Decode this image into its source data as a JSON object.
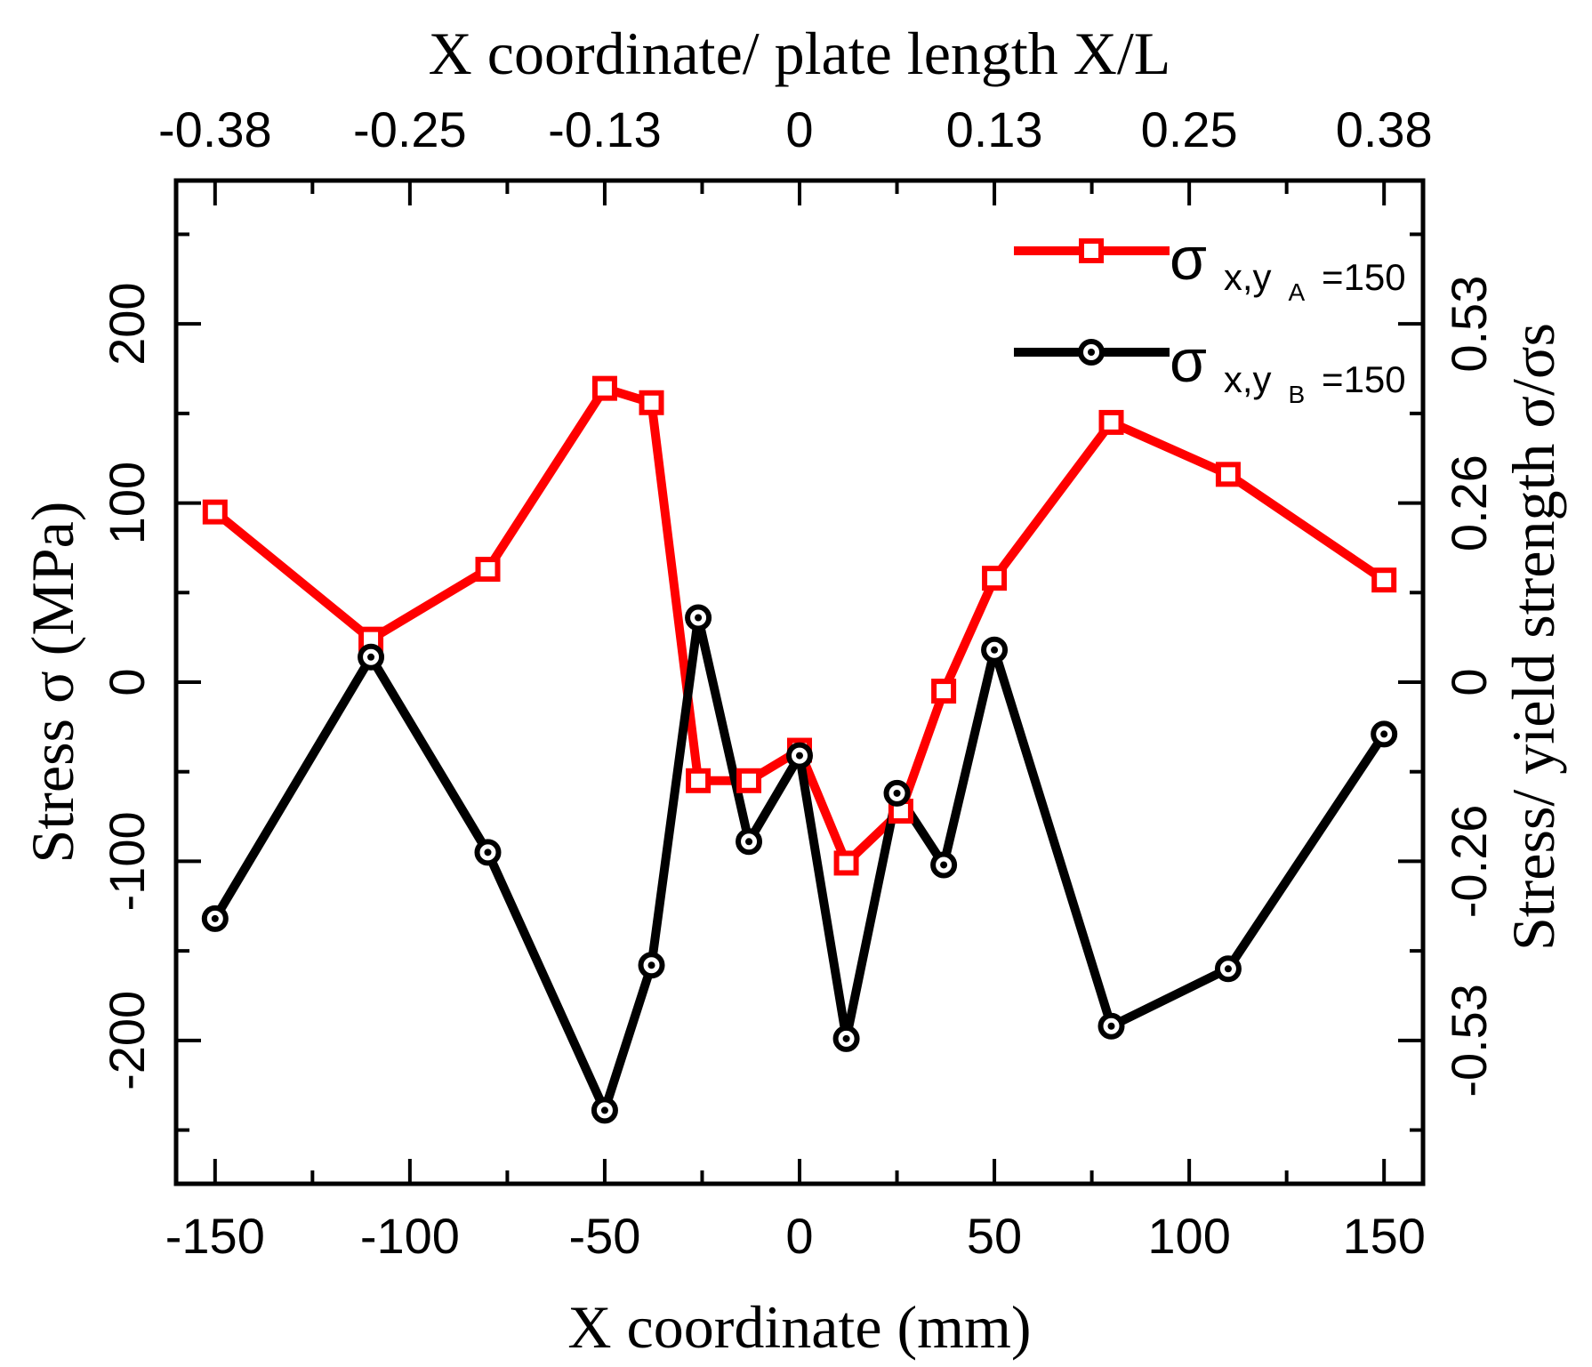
{
  "chart_data": {
    "type": "line",
    "title": "",
    "xlabel": "X coordinate (mm)",
    "ylabel": "Stress σ (MPa)",
    "x2label": "X coordinate/ plate length X/L",
    "y2label": "Stress/ yield strength σ/σs",
    "xlim": [
      -160,
      160
    ],
    "ylim": [
      -280,
      280
    ],
    "xticks": [
      -150,
      -100,
      -50,
      0,
      50,
      100,
      150
    ],
    "yticks": [
      -200,
      -100,
      0,
      100,
      200
    ],
    "top_axis": {
      "ticks": [
        -150,
        -100,
        -50,
        0,
        50,
        100,
        150
      ],
      "tick_labels": [
        "-0.38",
        "-0.25",
        "-0.13",
        "0",
        "0.13",
        "0.25",
        "0.38"
      ]
    },
    "right_axis": {
      "ticks": [
        -200,
        -100,
        0,
        100,
        200
      ],
      "tick_labels": [
        "-0.53",
        "-0.26",
        "0",
        "0.26",
        "0.53"
      ]
    },
    "legend_position": "top-right",
    "series": [
      {
        "name": "σx,yA=150",
        "label_main": "σ",
        "label_sub1": "x,y",
        "label_sub2": "A",
        "label_tail": "=150",
        "color": "#ff0000",
        "marker": "square",
        "x": [
          -150,
          -110,
          -80,
          -50,
          -38,
          -26,
          -13,
          0,
          12,
          26,
          37,
          50,
          80,
          110,
          150
        ],
        "y": [
          95,
          24,
          63,
          164,
          156,
          -55,
          -55,
          -38,
          -101,
          -72,
          -5,
          58,
          145,
          116,
          57
        ]
      },
      {
        "name": "σx,yB=150",
        "label_main": "σ",
        "label_sub1": "x,y",
        "label_sub2": "B",
        "label_tail": "=150",
        "color": "#000000",
        "marker": "circle",
        "x": [
          -150,
          -110,
          -80,
          -50,
          -38,
          -26,
          -13,
          0,
          12,
          25,
          37,
          50,
          80,
          110,
          150
        ],
        "y": [
          -132,
          14,
          -95,
          -239,
          -158,
          36,
          -89,
          -41,
          -199,
          -62,
          -102,
          18,
          -192,
          -160,
          -29
        ]
      }
    ]
  }
}
